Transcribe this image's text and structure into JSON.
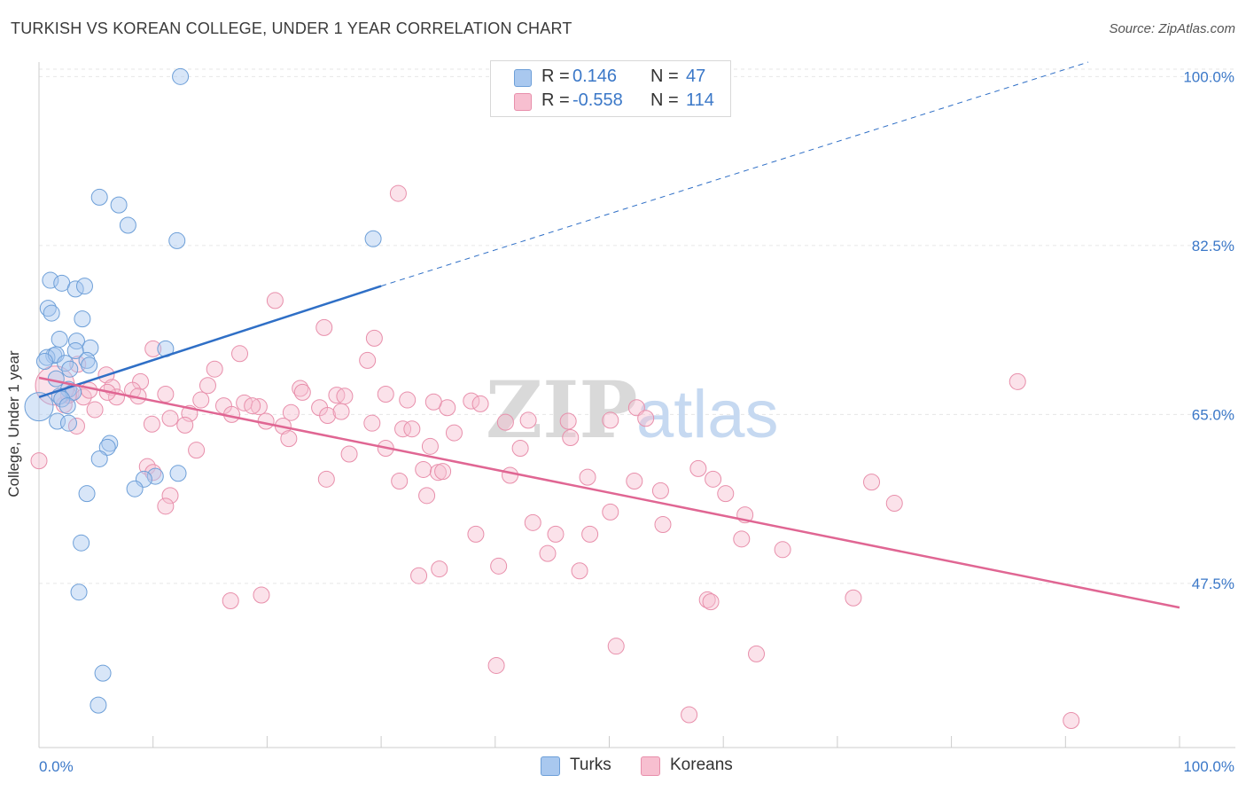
{
  "title": "TURKISH VS KOREAN COLLEGE, UNDER 1 YEAR CORRELATION CHART",
  "source": "Source: ZipAtlas.com",
  "watermark": {
    "zip": "ZIP",
    "atlas": "atlas"
  },
  "colors": {
    "turks_fill": "#a9c8ef",
    "turks_stroke": "#6d9fd8",
    "turks_line": "#2f6fc6",
    "koreans_fill": "#f7bfd0",
    "koreans_stroke": "#e88fab",
    "koreans_line": "#e06693",
    "axis_label": "#3b78c8",
    "grid": "#e6e6e6"
  },
  "legend": {
    "rows": [
      {
        "r_label": "R =",
        "r_value": "0.146",
        "n_label": "N =",
        "n_value": "47"
      },
      {
        "r_label": "R =",
        "r_value": "-0.558",
        "n_label": "N =",
        "n_value": "114"
      }
    ]
  },
  "bottom_legend": {
    "turks": "Turks",
    "koreans": "Koreans"
  },
  "chart_data": {
    "type": "scatter",
    "title": "TURKISH VS KOREAN COLLEGE, UNDER 1 YEAR CORRELATION CHART",
    "xlabel": "",
    "ylabel": "College, Under 1 year",
    "xlim": [
      0,
      100
    ],
    "ylim": [
      30.5,
      101.5
    ],
    "x_tick_labels": [
      "0.0%",
      "100.0%"
    ],
    "y_ticks": [
      47.5,
      65.0,
      82.5,
      100.0
    ],
    "y_tick_labels": [
      "47.5%",
      "65.0%",
      "82.5%",
      "100.0%"
    ],
    "grid": true,
    "series": [
      {
        "name": "Turks",
        "r": 0.146,
        "n": 47,
        "trend": {
          "x0": 0,
          "y0": 66.8,
          "x1": 30,
          "y1": 78.3,
          "dashed_to": {
            "x": 92,
            "y": 101.5
          }
        },
        "points": [
          [
            12.4,
            100.0
          ],
          [
            5.3,
            87.5
          ],
          [
            7.0,
            86.7
          ],
          [
            7.8,
            84.6
          ],
          [
            12.1,
            83.0
          ],
          [
            29.3,
            83.2
          ],
          [
            1.0,
            78.9
          ],
          [
            2.0,
            78.6
          ],
          [
            3.2,
            78.0
          ],
          [
            4.0,
            78.3
          ],
          [
            0.8,
            76.0
          ],
          [
            1.1,
            75.5
          ],
          [
            3.8,
            74.9
          ],
          [
            1.8,
            72.8
          ],
          [
            3.3,
            72.6
          ],
          [
            11.1,
            71.8
          ],
          [
            4.5,
            71.9
          ],
          [
            1.3,
            71.1
          ],
          [
            0.7,
            70.9
          ],
          [
            1.5,
            71.2
          ],
          [
            3.2,
            71.6
          ],
          [
            4.2,
            70.6
          ],
          [
            2.3,
            70.3
          ],
          [
            2.7,
            69.7
          ],
          [
            4.4,
            70.1
          ],
          [
            0.5,
            70.5
          ],
          [
            1.5,
            68.7
          ],
          [
            2.6,
            67.6
          ],
          [
            3.0,
            67.3
          ],
          [
            1.8,
            66.9
          ],
          [
            2.0,
            66.6
          ],
          [
            2.5,
            65.9
          ],
          [
            1.6,
            64.3
          ],
          [
            2.6,
            64.1
          ],
          [
            6.2,
            62.0
          ],
          [
            6.0,
            61.6
          ],
          [
            5.3,
            60.4
          ],
          [
            12.2,
            58.9
          ],
          [
            10.2,
            58.6
          ],
          [
            9.2,
            58.3
          ],
          [
            8.4,
            57.3
          ],
          [
            4.2,
            56.8
          ],
          [
            3.7,
            51.7
          ],
          [
            3.5,
            46.6
          ],
          [
            5.6,
            38.2
          ],
          [
            5.2,
            34.9
          ],
          [
            0.0,
            65.8
          ]
        ]
      },
      {
        "name": "Koreans",
        "r": -0.558,
        "n": 114,
        "trend": {
          "x0": 0,
          "y0": 68.8,
          "x1": 100,
          "y1": 45.0
        },
        "points": [
          [
            31.5,
            87.9
          ],
          [
            20.7,
            76.8
          ],
          [
            25.0,
            74.0
          ],
          [
            29.4,
            72.9
          ],
          [
            10.0,
            71.8
          ],
          [
            17.6,
            71.3
          ],
          [
            28.8,
            70.6
          ],
          [
            3.4,
            70.2
          ],
          [
            15.4,
            69.7
          ],
          [
            5.9,
            69.1
          ],
          [
            8.9,
            68.4
          ],
          [
            6.4,
            67.8
          ],
          [
            8.2,
            67.5
          ],
          [
            14.8,
            68.0
          ],
          [
            22.9,
            67.7
          ],
          [
            23.1,
            67.3
          ],
          [
            26.1,
            67.0
          ],
          [
            26.8,
            66.9
          ],
          [
            30.4,
            67.1
          ],
          [
            2.8,
            67.2
          ],
          [
            3.9,
            66.8
          ],
          [
            6.8,
            66.8
          ],
          [
            8.7,
            66.9
          ],
          [
            11.1,
            67.1
          ],
          [
            14.2,
            66.5
          ],
          [
            18.0,
            66.2
          ],
          [
            16.2,
            65.9
          ],
          [
            19.3,
            65.8
          ],
          [
            18.7,
            65.9
          ],
          [
            22.1,
            65.2
          ],
          [
            24.6,
            65.7
          ],
          [
            25.3,
            64.9
          ],
          [
            26.5,
            65.3
          ],
          [
            16.9,
            65.0
          ],
          [
            13.2,
            65.1
          ],
          [
            11.5,
            64.6
          ],
          [
            9.9,
            64.0
          ],
          [
            12.8,
            63.9
          ],
          [
            19.9,
            64.3
          ],
          [
            21.4,
            63.8
          ],
          [
            29.2,
            64.1
          ],
          [
            31.9,
            63.5
          ],
          [
            32.7,
            63.5
          ],
          [
            36.4,
            63.1
          ],
          [
            40.9,
            64.2
          ],
          [
            35.8,
            65.7
          ],
          [
            37.9,
            66.4
          ],
          [
            38.7,
            66.1
          ],
          [
            34.6,
            66.3
          ],
          [
            42.9,
            64.4
          ],
          [
            46.4,
            64.3
          ],
          [
            50.1,
            64.4
          ],
          [
            52.4,
            65.7
          ],
          [
            53.2,
            64.6
          ],
          [
            32.3,
            66.5
          ],
          [
            3.3,
            63.8
          ],
          [
            4.4,
            67.5
          ],
          [
            2.2,
            66.0
          ],
          [
            21.9,
            62.5
          ],
          [
            30.4,
            61.5
          ],
          [
            34.3,
            61.7
          ],
          [
            42.2,
            61.5
          ],
          [
            46.6,
            62.6
          ],
          [
            13.8,
            61.3
          ],
          [
            27.2,
            60.9
          ],
          [
            33.7,
            59.3
          ],
          [
            35.0,
            59.0
          ],
          [
            35.4,
            59.1
          ],
          [
            41.3,
            58.7
          ],
          [
            48.1,
            58.5
          ],
          [
            52.2,
            58.1
          ],
          [
            57.8,
            59.4
          ],
          [
            59.1,
            58.3
          ],
          [
            25.2,
            58.3
          ],
          [
            31.6,
            58.1
          ],
          [
            9.5,
            59.6
          ],
          [
            10.0,
            59.0
          ],
          [
            11.5,
            56.6
          ],
          [
            11.1,
            55.5
          ],
          [
            34.0,
            56.6
          ],
          [
            54.5,
            57.1
          ],
          [
            60.2,
            56.8
          ],
          [
            73.0,
            58.0
          ],
          [
            75.0,
            55.8
          ],
          [
            61.9,
            54.6
          ],
          [
            50.1,
            54.9
          ],
          [
            54.7,
            53.6
          ],
          [
            43.3,
            53.8
          ],
          [
            45.3,
            52.6
          ],
          [
            48.3,
            52.6
          ],
          [
            38.3,
            52.6
          ],
          [
            61.6,
            52.1
          ],
          [
            65.2,
            51.0
          ],
          [
            44.6,
            50.6
          ],
          [
            40.3,
            49.3
          ],
          [
            35.1,
            49.0
          ],
          [
            47.4,
            48.8
          ],
          [
            33.3,
            48.3
          ],
          [
            19.5,
            46.3
          ],
          [
            16.8,
            45.7
          ],
          [
            58.6,
            45.8
          ],
          [
            58.9,
            45.6
          ],
          [
            71.4,
            46.0
          ],
          [
            50.6,
            41.0
          ],
          [
            62.9,
            40.2
          ],
          [
            40.1,
            39.0
          ],
          [
            57.0,
            33.9
          ],
          [
            90.5,
            33.3
          ],
          [
            85.8,
            68.4
          ],
          [
            0.0,
            60.2
          ],
          [
            2.6,
            67.0
          ],
          [
            1.4,
            68.0
          ],
          [
            6.0,
            67.3
          ],
          [
            4.9,
            65.5
          ]
        ]
      }
    ]
  }
}
